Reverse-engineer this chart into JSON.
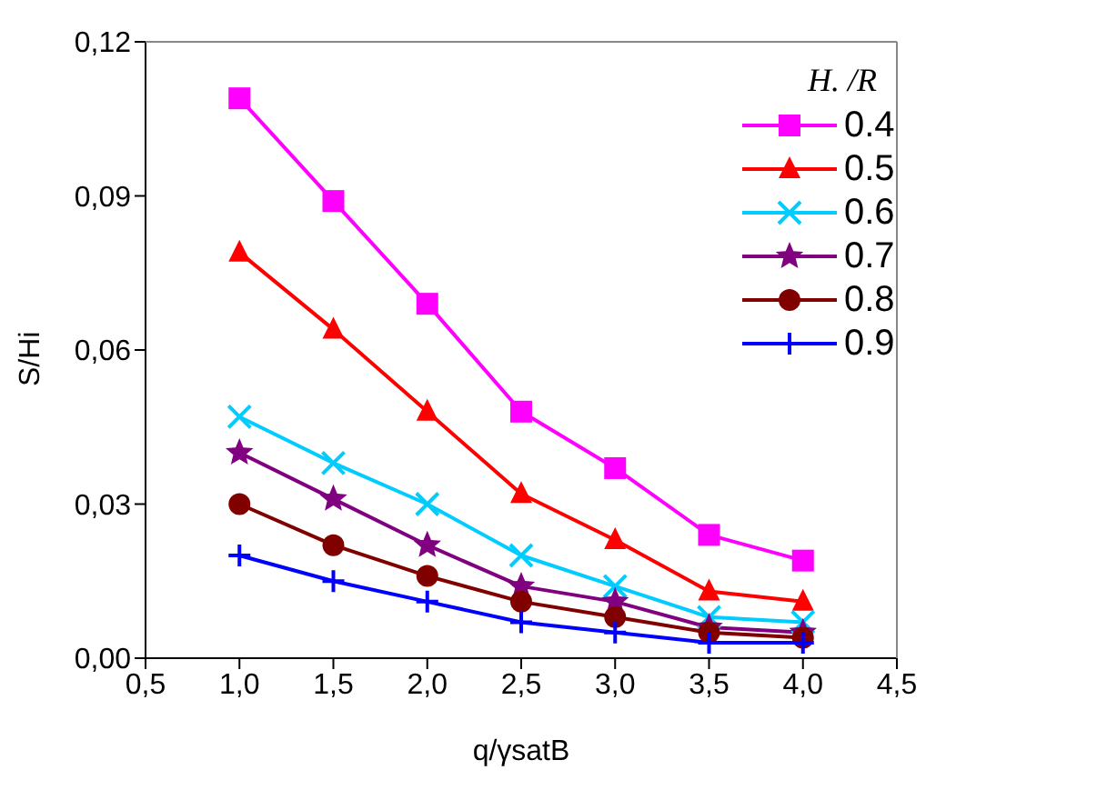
{
  "chart_data": {
    "type": "line",
    "xlabel": "q/γsatB",
    "ylabel": "S/Hi",
    "legend_title": "H. /R",
    "legend": "top right",
    "grid": false,
    "x": [
      1.0,
      1.5,
      2.0,
      2.5,
      3.0,
      3.5,
      4.0
    ],
    "xlim": [
      0.5,
      4.5
    ],
    "xticks": [
      {
        "value": 0.5,
        "label": "0,5"
      },
      {
        "value": 1.0,
        "label": "1,0"
      },
      {
        "value": 1.5,
        "label": "1,5"
      },
      {
        "value": 2.0,
        "label": "2,0"
      },
      {
        "value": 2.5,
        "label": "2,5"
      },
      {
        "value": 3.0,
        "label": "3,0"
      },
      {
        "value": 3.5,
        "label": "3,5"
      },
      {
        "value": 4.0,
        "label": "4,0"
      },
      {
        "value": 4.5,
        "label": "4,5"
      }
    ],
    "ylim": [
      0,
      0.12
    ],
    "yticks": [
      {
        "value": 0,
        "label": "0,00"
      },
      {
        "value": 0.03,
        "label": "0,03"
      },
      {
        "value": 0.06,
        "label": "0,06"
      },
      {
        "value": 0.09,
        "label": "0,09"
      },
      {
        "value": 0.12,
        "label": "0,12"
      }
    ],
    "series": [
      {
        "name": "0.4",
        "color": "#ff00ff",
        "marker": "square",
        "values": [
          0.109,
          0.089,
          0.069,
          0.048,
          0.037,
          0.024,
          0.019
        ]
      },
      {
        "name": "0.5",
        "color": "#ff0000",
        "marker": "triangle",
        "values": [
          0.079,
          0.064,
          0.048,
          0.032,
          0.023,
          0.013,
          0.011
        ]
      },
      {
        "name": "0.6",
        "color": "#00ccff",
        "marker": "x",
        "values": [
          0.047,
          0.038,
          0.03,
          0.02,
          0.014,
          0.008,
          0.007
        ]
      },
      {
        "name": "0.7",
        "color": "#800080",
        "marker": "star",
        "values": [
          0.04,
          0.031,
          0.022,
          0.014,
          0.011,
          0.006,
          0.005
        ]
      },
      {
        "name": "0.8",
        "color": "#800000",
        "marker": "circle",
        "values": [
          0.03,
          0.022,
          0.016,
          0.011,
          0.008,
          0.005,
          0.004
        ]
      },
      {
        "name": "0.9",
        "color": "#0000ff",
        "marker": "cross",
        "values": [
          0.02,
          0.015,
          0.011,
          0.007,
          0.005,
          0.003,
          0.003
        ]
      }
    ]
  }
}
